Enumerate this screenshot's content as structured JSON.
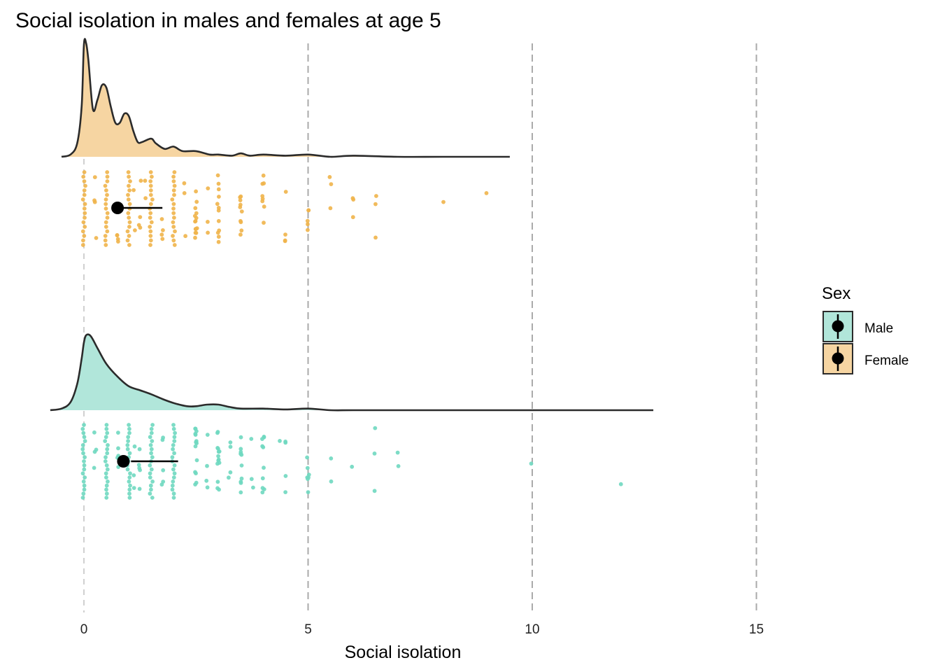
{
  "colors": {
    "female_fill": "#F6D5A2",
    "female_points": "#F0B44A",
    "male_fill": "#B1E6DA",
    "male_points": "#6FD8C0",
    "outline": "#2b2b2b",
    "gridline": "#aaaaaa"
  },
  "chart_data": {
    "type": "raincloud",
    "title": "Social isolation in males and females at age 5",
    "xlabel": "Social isolation",
    "ylabel": "",
    "xlim": [
      -0.75,
      17.5
    ],
    "x_ticks": [
      0,
      5,
      10,
      15
    ],
    "x_tick_labels": [
      "0",
      "5",
      "10",
      "15"
    ],
    "legend": {
      "title": "Sex",
      "position": "right",
      "entries": [
        "Male",
        "Female"
      ]
    },
    "groups": [
      {
        "name": "Female",
        "density": [
          [
            -0.5,
            0.0
          ],
          [
            -0.3,
            0.02
          ],
          [
            -0.15,
            0.12
          ],
          [
            -0.05,
            0.45
          ],
          [
            0.0,
            0.99
          ],
          [
            0.05,
            1.0
          ],
          [
            0.1,
            0.85
          ],
          [
            0.2,
            0.42
          ],
          [
            0.3,
            0.5
          ],
          [
            0.4,
            0.63
          ],
          [
            0.5,
            0.61
          ],
          [
            0.6,
            0.44
          ],
          [
            0.7,
            0.3
          ],
          [
            0.8,
            0.3
          ],
          [
            0.9,
            0.38
          ],
          [
            1.0,
            0.36
          ],
          [
            1.1,
            0.23
          ],
          [
            1.2,
            0.13
          ],
          [
            1.3,
            0.13
          ],
          [
            1.5,
            0.16
          ],
          [
            1.6,
            0.12
          ],
          [
            1.8,
            0.07
          ],
          [
            2.0,
            0.09
          ],
          [
            2.2,
            0.05
          ],
          [
            2.5,
            0.05
          ],
          [
            2.8,
            0.02
          ],
          [
            3.0,
            0.02
          ],
          [
            3.3,
            0.01
          ],
          [
            3.5,
            0.03
          ],
          [
            3.7,
            0.01
          ],
          [
            4.0,
            0.02
          ],
          [
            4.5,
            0.01
          ],
          [
            5.0,
            0.02
          ],
          [
            5.5,
            0.0
          ],
          [
            6.0,
            0.01
          ],
          [
            7.0,
            0.0
          ],
          [
            8.0,
            0.0
          ],
          [
            9.5,
            0.0
          ]
        ],
        "points": [
          [
            0,
            17
          ],
          [
            0.5,
            17
          ],
          [
            1,
            17
          ],
          [
            1.5,
            17
          ],
          [
            2,
            17
          ],
          [
            2.5,
            14
          ],
          [
            3,
            12
          ],
          [
            3.5,
            10
          ],
          [
            4,
            8
          ],
          [
            4.5,
            4
          ],
          [
            5,
            5
          ],
          [
            5.5,
            3
          ],
          [
            6,
            3
          ],
          [
            6.5,
            3
          ],
          [
            8,
            1
          ],
          [
            9,
            1
          ],
          [
            0.25,
            4
          ],
          [
            0.75,
            5
          ],
          [
            1.25,
            4
          ],
          [
            1.75,
            4
          ],
          [
            2.25,
            3
          ],
          [
            2.75,
            3
          ],
          [
            1.125,
            2
          ],
          [
            1.375,
            2
          ]
        ],
        "mean": 0.75,
        "ci": [
          0.75,
          1.75
        ]
      },
      {
        "name": "Male",
        "density": [
          [
            -0.75,
            0.0
          ],
          [
            -0.5,
            0.02
          ],
          [
            -0.3,
            0.1
          ],
          [
            -0.15,
            0.33
          ],
          [
            -0.05,
            0.65
          ],
          [
            0.0,
            0.85
          ],
          [
            0.05,
            0.94
          ],
          [
            0.15,
            0.93
          ],
          [
            0.3,
            0.78
          ],
          [
            0.5,
            0.58
          ],
          [
            0.75,
            0.42
          ],
          [
            1.0,
            0.3
          ],
          [
            1.25,
            0.25
          ],
          [
            1.5,
            0.2
          ],
          [
            1.75,
            0.14
          ],
          [
            2.0,
            0.09
          ],
          [
            2.3,
            0.05
          ],
          [
            2.5,
            0.05
          ],
          [
            2.75,
            0.07
          ],
          [
            3.0,
            0.07
          ],
          [
            3.25,
            0.04
          ],
          [
            3.5,
            0.02
          ],
          [
            4.0,
            0.02
          ],
          [
            4.5,
            0.01
          ],
          [
            5.0,
            0.02
          ],
          [
            5.5,
            0.0
          ],
          [
            6.0,
            0.0
          ],
          [
            7.0,
            0.0
          ],
          [
            10.0,
            0.0
          ],
          [
            12.7,
            0.0
          ]
        ],
        "points": [
          [
            0,
            19
          ],
          [
            0.5,
            19
          ],
          [
            1,
            19
          ],
          [
            1.5,
            19
          ],
          [
            2,
            19
          ],
          [
            2.5,
            14
          ],
          [
            3,
            14
          ],
          [
            3.5,
            10
          ],
          [
            4,
            10
          ],
          [
            4.5,
            4
          ],
          [
            5,
            7
          ],
          [
            5.5,
            2
          ],
          [
            6,
            1
          ],
          [
            6.5,
            3
          ],
          [
            7,
            2
          ],
          [
            10,
            1
          ],
          [
            12,
            1
          ],
          [
            0.25,
            4
          ],
          [
            0.75,
            5
          ],
          [
            1.25,
            5
          ],
          [
            1.75,
            5
          ],
          [
            2.75,
            4
          ],
          [
            3.25,
            4
          ],
          [
            3.75,
            3
          ],
          [
            4.375,
            1
          ],
          [
            1.125,
            3
          ]
        ],
        "mean": 0.88,
        "ci": [
          1.05,
          2.1
        ]
      }
    ]
  }
}
